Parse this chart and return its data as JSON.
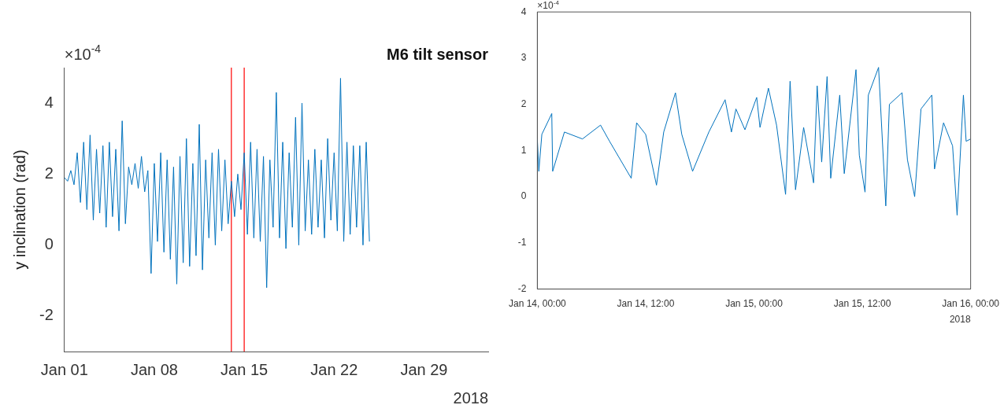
{
  "chart_data": [
    {
      "type": "line",
      "title": "M6 tilt sensor",
      "ylabel": "y inclination (rad)",
      "color": "#0072bd",
      "grid": false,
      "legend": false,
      "marker": "none",
      "xlim": [
        "2018-01-01",
        "2018-02-03"
      ],
      "xticks": [
        {
          "value": "2018-01-01",
          "label": "Jan 01"
        },
        {
          "value": "2018-01-08",
          "label": "Jan 08"
        },
        {
          "value": "2018-01-15",
          "label": "Jan 15"
        },
        {
          "value": "2018-01-22",
          "label": "Jan 22"
        },
        {
          "value": "2018-01-29",
          "label": "Jan 29"
        }
      ],
      "ylim": [
        -3,
        5
      ],
      "yticks": [
        -2,
        0,
        2,
        4
      ],
      "ref_lines": [
        {
          "axis": "x",
          "value": "2018-01-14",
          "color": "#ff0000"
        },
        {
          "axis": "x",
          "value": "2018-01-15",
          "color": "#ff0000"
        }
      ],
      "annotations": [
        "×10$^{-4}$",
        "2018"
      ],
      "x": [
        "2018-01-01T00:00",
        "2018-01-01T06:00",
        "2018-01-01T12:00",
        "2018-01-01T18:00",
        "2018-01-02T00:00",
        "2018-01-02T06:00",
        "2018-01-02T12:00",
        "2018-01-02T18:00",
        "2018-01-03T00:00",
        "2018-01-03T06:00",
        "2018-01-03T12:00",
        "2018-01-03T18:00",
        "2018-01-04T00:00",
        "2018-01-04T06:00",
        "2018-01-04T12:00",
        "2018-01-04T18:00",
        "2018-01-05T00:00",
        "2018-01-05T06:00",
        "2018-01-05T12:00",
        "2018-01-05T18:00",
        "2018-01-06T00:00",
        "2018-01-06T06:00",
        "2018-01-06T12:00",
        "2018-01-06T18:00",
        "2018-01-07T00:00",
        "2018-01-07T06:00",
        "2018-01-07T12:00",
        "2018-01-07T18:00",
        "2018-01-08T00:00",
        "2018-01-08T06:00",
        "2018-01-08T12:00",
        "2018-01-08T18:00",
        "2018-01-09T00:00",
        "2018-01-09T06:00",
        "2018-01-09T12:00",
        "2018-01-09T18:00",
        "2018-01-10T00:00",
        "2018-01-10T06:00",
        "2018-01-10T12:00",
        "2018-01-10T18:00",
        "2018-01-11T00:00",
        "2018-01-11T06:00",
        "2018-01-11T12:00",
        "2018-01-11T18:00",
        "2018-01-12T00:00",
        "2018-01-12T06:00",
        "2018-01-12T12:00",
        "2018-01-12T18:00",
        "2018-01-13T00:00",
        "2018-01-13T06:00",
        "2018-01-13T12:00",
        "2018-01-13T18:00",
        "2018-01-14T00:00",
        "2018-01-14T06:00",
        "2018-01-14T12:00",
        "2018-01-14T18:00",
        "2018-01-15T00:00",
        "2018-01-15T06:00",
        "2018-01-15T12:00",
        "2018-01-15T18:00",
        "2018-01-16T00:00",
        "2018-01-16T06:00",
        "2018-01-16T12:00",
        "2018-01-16T18:00",
        "2018-01-17T00:00",
        "2018-01-17T06:00",
        "2018-01-17T12:00",
        "2018-01-17T18:00",
        "2018-01-18T00:00",
        "2018-01-18T06:00",
        "2018-01-18T12:00",
        "2018-01-18T18:00",
        "2018-01-19T00:00",
        "2018-01-19T06:00",
        "2018-01-19T12:00",
        "2018-01-19T18:00",
        "2018-01-20T00:00",
        "2018-01-20T06:00",
        "2018-01-20T12:00",
        "2018-01-20T18:00",
        "2018-01-21T00:00",
        "2018-01-21T06:00",
        "2018-01-21T12:00",
        "2018-01-21T18:00",
        "2018-01-22T00:00",
        "2018-01-22T06:00",
        "2018-01-22T12:00",
        "2018-01-22T18:00",
        "2018-01-23T00:00",
        "2018-01-23T06:00",
        "2018-01-23T12:00",
        "2018-01-23T18:00",
        "2018-01-24T00:00",
        "2018-01-24T06:00",
        "2018-01-24T12:00",
        "2018-01-24T18:00"
      ],
      "values": [
        1.9,
        1.8,
        2.1,
        1.7,
        2.6,
        1.2,
        2.9,
        1.0,
        3.1,
        0.7,
        2.7,
        0.9,
        2.8,
        0.5,
        2.9,
        0.8,
        2.7,
        0.4,
        3.5,
        0.6,
        2.2,
        1.7,
        2.3,
        1.6,
        2.5,
        1.5,
        2.1,
        -0.8,
        2.3,
        0.1,
        2.6,
        -0.2,
        2.4,
        -0.4,
        2.2,
        -1.1,
        2.5,
        -0.5,
        3.0,
        -0.6,
        2.3,
        -0.3,
        3.4,
        -0.7,
        2.4,
        0.2,
        2.6,
        0.0,
        2.7,
        0.4,
        2.4,
        0.6,
        1.8,
        0.8,
        2.0,
        1.0,
        2.6,
        0.3,
        2.9,
        0.2,
        2.7,
        0.1,
        2.5,
        -1.2,
        2.4,
        0.5,
        4.3,
        0.2,
        2.9,
        -0.1,
        2.6,
        0.5,
        3.6,
        0.0,
        4.0,
        0.4,
        2.4,
        0.3,
        2.7,
        0.5,
        2.4,
        0.2,
        3.0,
        0.7,
        2.6,
        0.4,
        4.7,
        0.1,
        2.9,
        0.3,
        2.8,
        0.5,
        2.8,
        0.0,
        2.9,
        0.1
      ]
    },
    {
      "type": "line",
      "color": "#0072bd",
      "grid": false,
      "legend": false,
      "marker": "none",
      "xlim": [
        "2018-01-14T00:00",
        "2018-01-16T00:00"
      ],
      "xticks": [
        {
          "value": "2018-01-14T00:00",
          "label": "Jan 14, 00:00"
        },
        {
          "value": "2018-01-14T12:00",
          "label": "Jan 14, 12:00"
        },
        {
          "value": "2018-01-15T00:00",
          "label": "Jan 15, 00:00"
        },
        {
          "value": "2018-01-15T12:00",
          "label": "Jan 15, 12:00"
        },
        {
          "value": "2018-01-16T00:00",
          "label": "Jan 16, 00:00"
        }
      ],
      "ylim": [
        -2,
        4
      ],
      "yticks": [
        -2,
        -1,
        0,
        1,
        2,
        3,
        4
      ],
      "annotations": [
        "×10$^{-4}$",
        "2018"
      ],
      "x": [
        "2018-01-14T00:00",
        "2018-01-14T00:10",
        "2018-01-14T00:30",
        "2018-01-14T01:36",
        "2018-01-14T01:42",
        "2018-01-14T03:00",
        "2018-01-14T05:00",
        "2018-01-14T07:00",
        "2018-01-14T08:00",
        "2018-01-14T10:24",
        "2018-01-14T11:00",
        "2018-01-14T12:00",
        "2018-01-14T13:12",
        "2018-01-14T14:00",
        "2018-01-14T15:18",
        "2018-01-14T16:00",
        "2018-01-14T17:12",
        "2018-01-14T19:00",
        "2018-01-14T20:48",
        "2018-01-14T21:30",
        "2018-01-14T22:00",
        "2018-01-14T23:00",
        "2018-01-15T00:18",
        "2018-01-15T00:40",
        "2018-01-15T01:36",
        "2018-01-15T02:30",
        "2018-01-15T03:30",
        "2018-01-15T04:00",
        "2018-01-15T04:36",
        "2018-01-15T05:30",
        "2018-01-15T06:36",
        "2018-01-15T07:00",
        "2018-01-15T07:30",
        "2018-01-15T08:06",
        "2018-01-15T08:30",
        "2018-01-15T09:30",
        "2018-01-15T10:00",
        "2018-01-15T11:18",
        "2018-01-15T11:40",
        "2018-01-15T12:18",
        "2018-01-15T12:40",
        "2018-01-15T13:48",
        "2018-01-15T14:36",
        "2018-01-15T15:00",
        "2018-01-15T16:24",
        "2018-01-15T17:00",
        "2018-01-15T17:48",
        "2018-01-15T18:30",
        "2018-01-15T19:42",
        "2018-01-15T20:00",
        "2018-01-15T21:00",
        "2018-01-15T22:00",
        "2018-01-15T22:30",
        "2018-01-15T23:12",
        "2018-01-15T23:30",
        "2018-01-16T00:00"
      ],
      "values": [
        1.25,
        0.55,
        1.35,
        1.8,
        0.55,
        1.4,
        1.25,
        1.55,
        1.2,
        0.4,
        1.6,
        1.35,
        0.25,
        1.4,
        2.25,
        1.35,
        0.55,
        1.4,
        2.1,
        1.4,
        1.9,
        1.45,
        2.15,
        1.5,
        2.35,
        1.55,
        0.05,
        2.5,
        0.15,
        1.5,
        0.3,
        2.4,
        0.75,
        2.6,
        0.4,
        2.2,
        0.5,
        2.75,
        0.9,
        0.1,
        2.2,
        2.8,
        -0.2,
        2.0,
        2.25,
        0.8,
        0.0,
        1.9,
        2.2,
        0.6,
        1.6,
        1.1,
        -0.4,
        2.2,
        1.2,
        1.25
      ]
    }
  ]
}
